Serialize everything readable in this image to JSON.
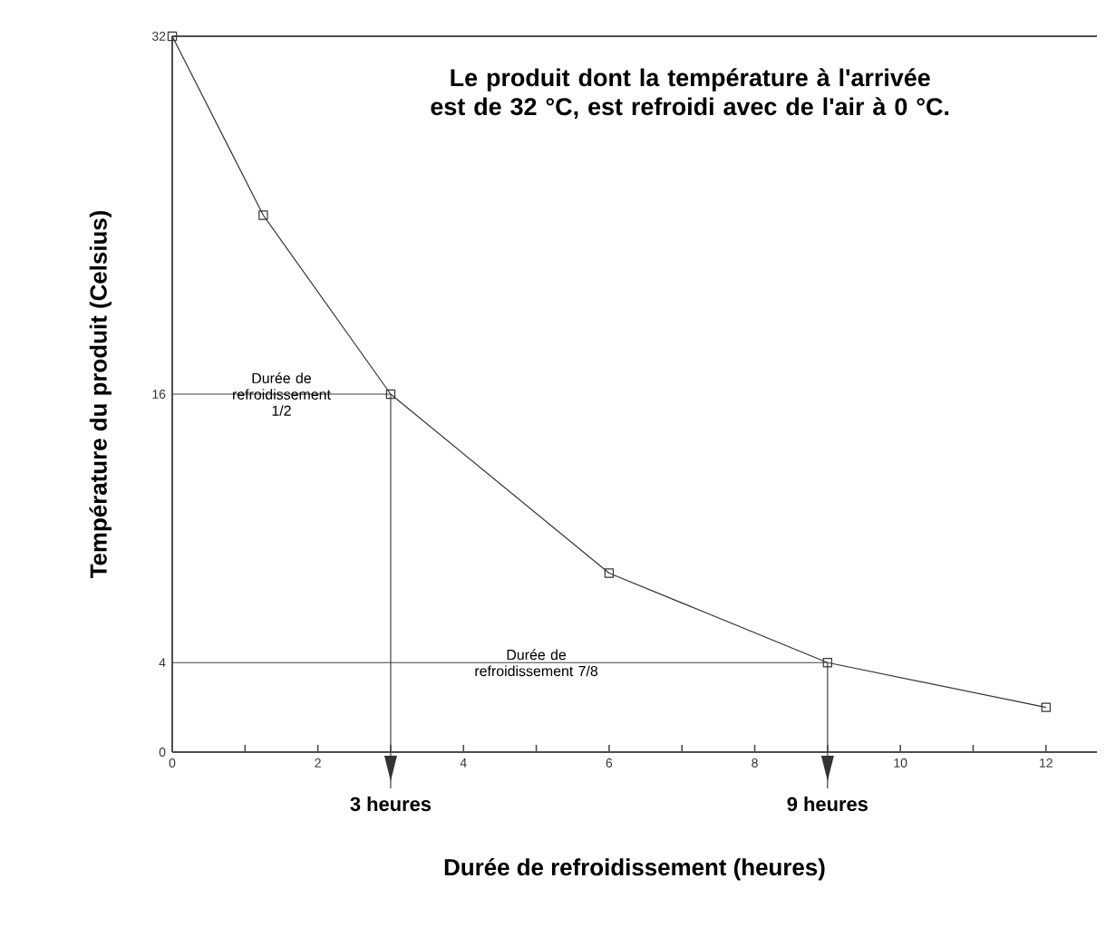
{
  "chart_data": {
    "type": "line",
    "title": "Le produit dont la température à l'arrivée est de 32 °C, est refroidi avec de l'air à 0 °C.",
    "xlabel": "Durée de refroidissement (heures)",
    "ylabel": "Température du produit (Celsius)",
    "x": [
      0,
      1.25,
      3,
      6,
      9,
      12
    ],
    "series": [
      {
        "color": "#333333",
        "values": [
          32,
          24,
          16,
          8,
          4,
          2
        ]
      }
    ],
    "marker": "square",
    "line_style": "solid",
    "grid": false,
    "legend": false,
    "xlim": [
      0,
      12.7
    ],
    "ylim": [
      0,
      32
    ],
    "xticks": [
      0,
      {
        "value": 1,
        "label": null
      },
      2,
      {
        "value": 3,
        "label": null
      },
      4,
      {
        "value": 5,
        "label": null
      },
      6,
      {
        "value": 7,
        "label": null
      },
      8,
      {
        "value": 9,
        "label": null
      },
      10,
      {
        "value": 11,
        "label": null
      },
      12
    ],
    "yticks": [
      0,
      4,
      16,
      32
    ],
    "ref_lines": [
      {
        "axis": "y",
        "value": 16,
        "label": "Durée de refroidissement 1/2"
      },
      {
        "axis": "y",
        "value": 4,
        "label": "Durée de refroidissement 7/8"
      },
      {
        "axis": "x",
        "value": 3,
        "label": "3 heures"
      },
      {
        "axis": "x",
        "value": 9,
        "label": "9 heures"
      }
    ]
  }
}
